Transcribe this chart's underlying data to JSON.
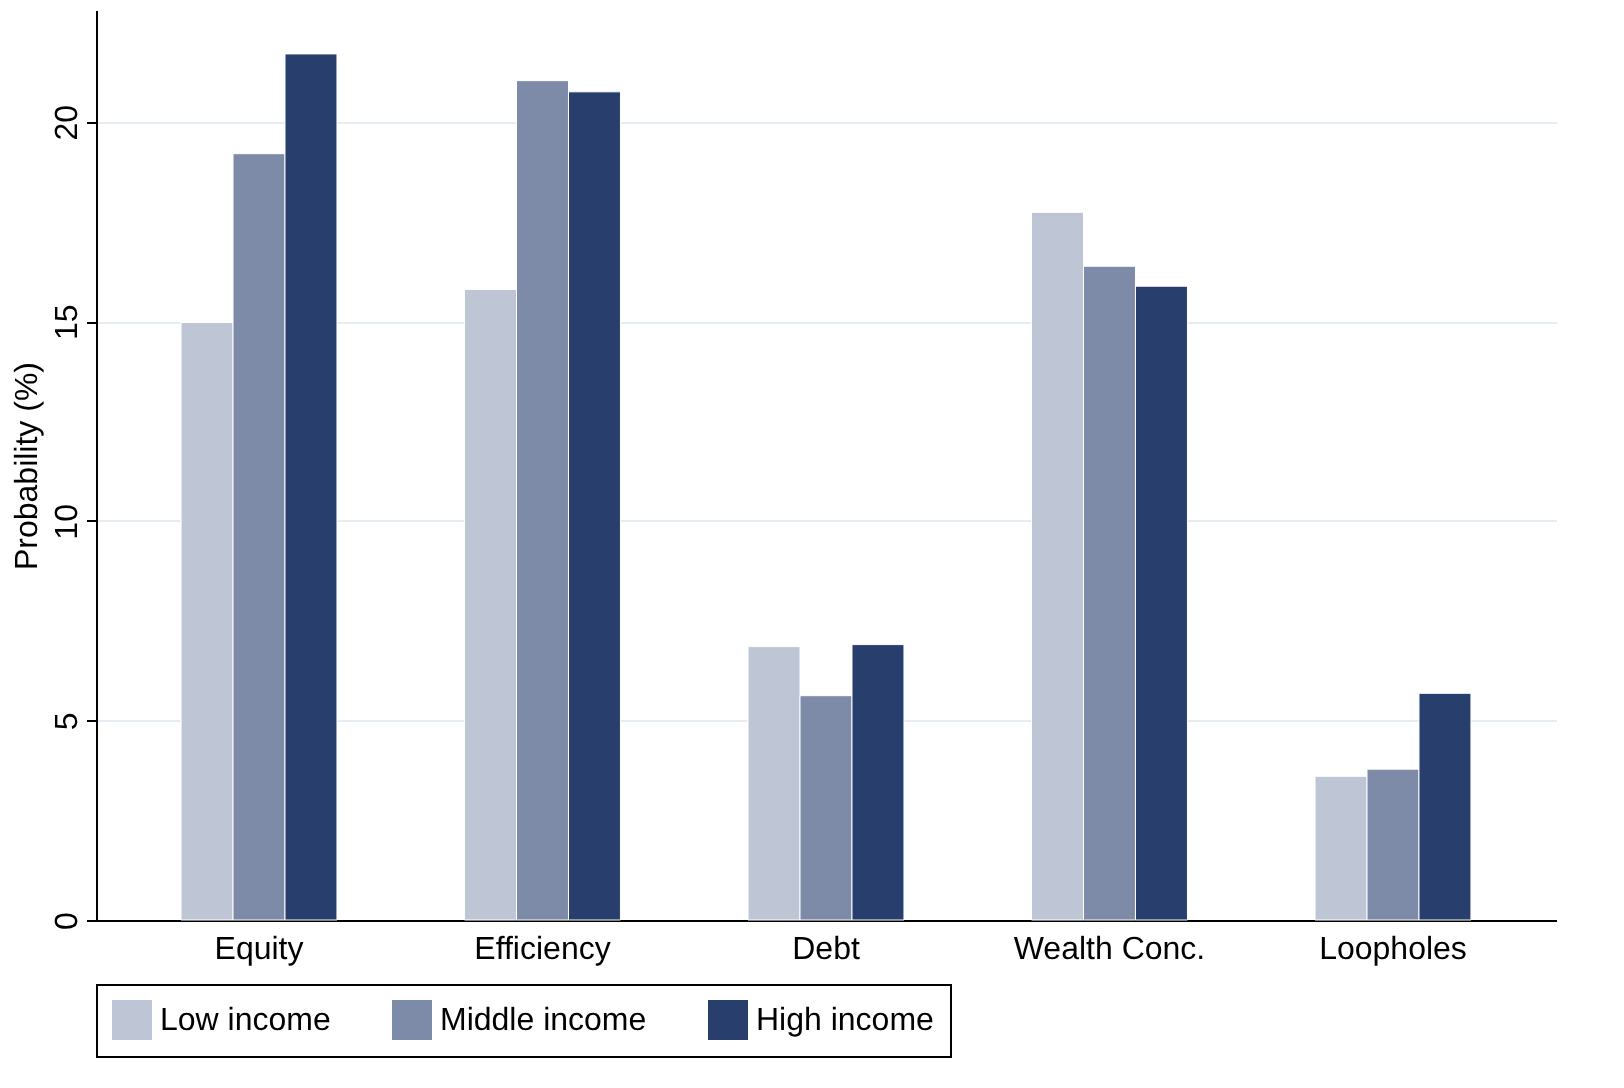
{
  "chart_data": {
    "type": "bar",
    "ylabel": "Probability (%)",
    "categories": [
      "Equity",
      "Efficiency",
      "Debt",
      "Wealth Conc.",
      "Loopholes"
    ],
    "series": [
      {
        "name": "Low income",
        "color": "#bec5d5",
        "values": [
          14.97,
          15.8,
          6.85,
          17.73,
          3.6
        ]
      },
      {
        "name": "Middle income",
        "color": "#7d8ba8",
        "values": [
          19.2,
          21.03,
          5.62,
          16.38,
          3.78
        ]
      },
      {
        "name": "High income",
        "color": "#283f6d",
        "values": [
          21.7,
          20.75,
          6.9,
          15.88,
          5.68
        ]
      }
    ],
    "ylim": [
      0,
      22.8
    ],
    "yticks": [
      0,
      5,
      10,
      15,
      20
    ],
    "grid": "y",
    "legend": "bottom"
  }
}
